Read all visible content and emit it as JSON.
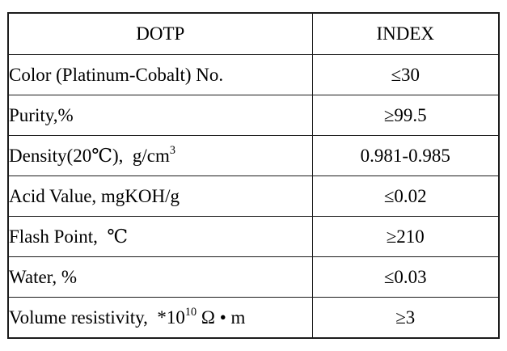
{
  "page": {
    "background_color": "#ffffff",
    "text_color": "#000000",
    "border_color": "#1b1b1b"
  },
  "table": {
    "header": {
      "product": "DOTP",
      "index": "INDEX"
    },
    "rows": [
      {
        "pre": "Color (Platinum-Cobalt) No.",
        "sup": "",
        "post": "",
        "value": "≤30"
      },
      {
        "pre": "Purity,%",
        "sup": "",
        "post": "",
        "value": "≥99.5"
      },
      {
        "pre": "Density(20℃),  g/cm",
        "sup": "3",
        "post": "",
        "value": "0.981-0.985"
      },
      {
        "pre": "Acid Value, mgKOH/g",
        "sup": "",
        "post": "",
        "value": "≤0.02"
      },
      {
        "pre": "Flash Point,  ℃",
        "sup": "",
        "post": "",
        "value": "≥210"
      },
      {
        "pre": "Water, %",
        "sup": "",
        "post": "",
        "value": "≤0.03"
      },
      {
        "pre": "Volume resistivity,  *10",
        "sup": "10",
        "post": " Ω • m",
        "value": "≥3"
      }
    ]
  }
}
